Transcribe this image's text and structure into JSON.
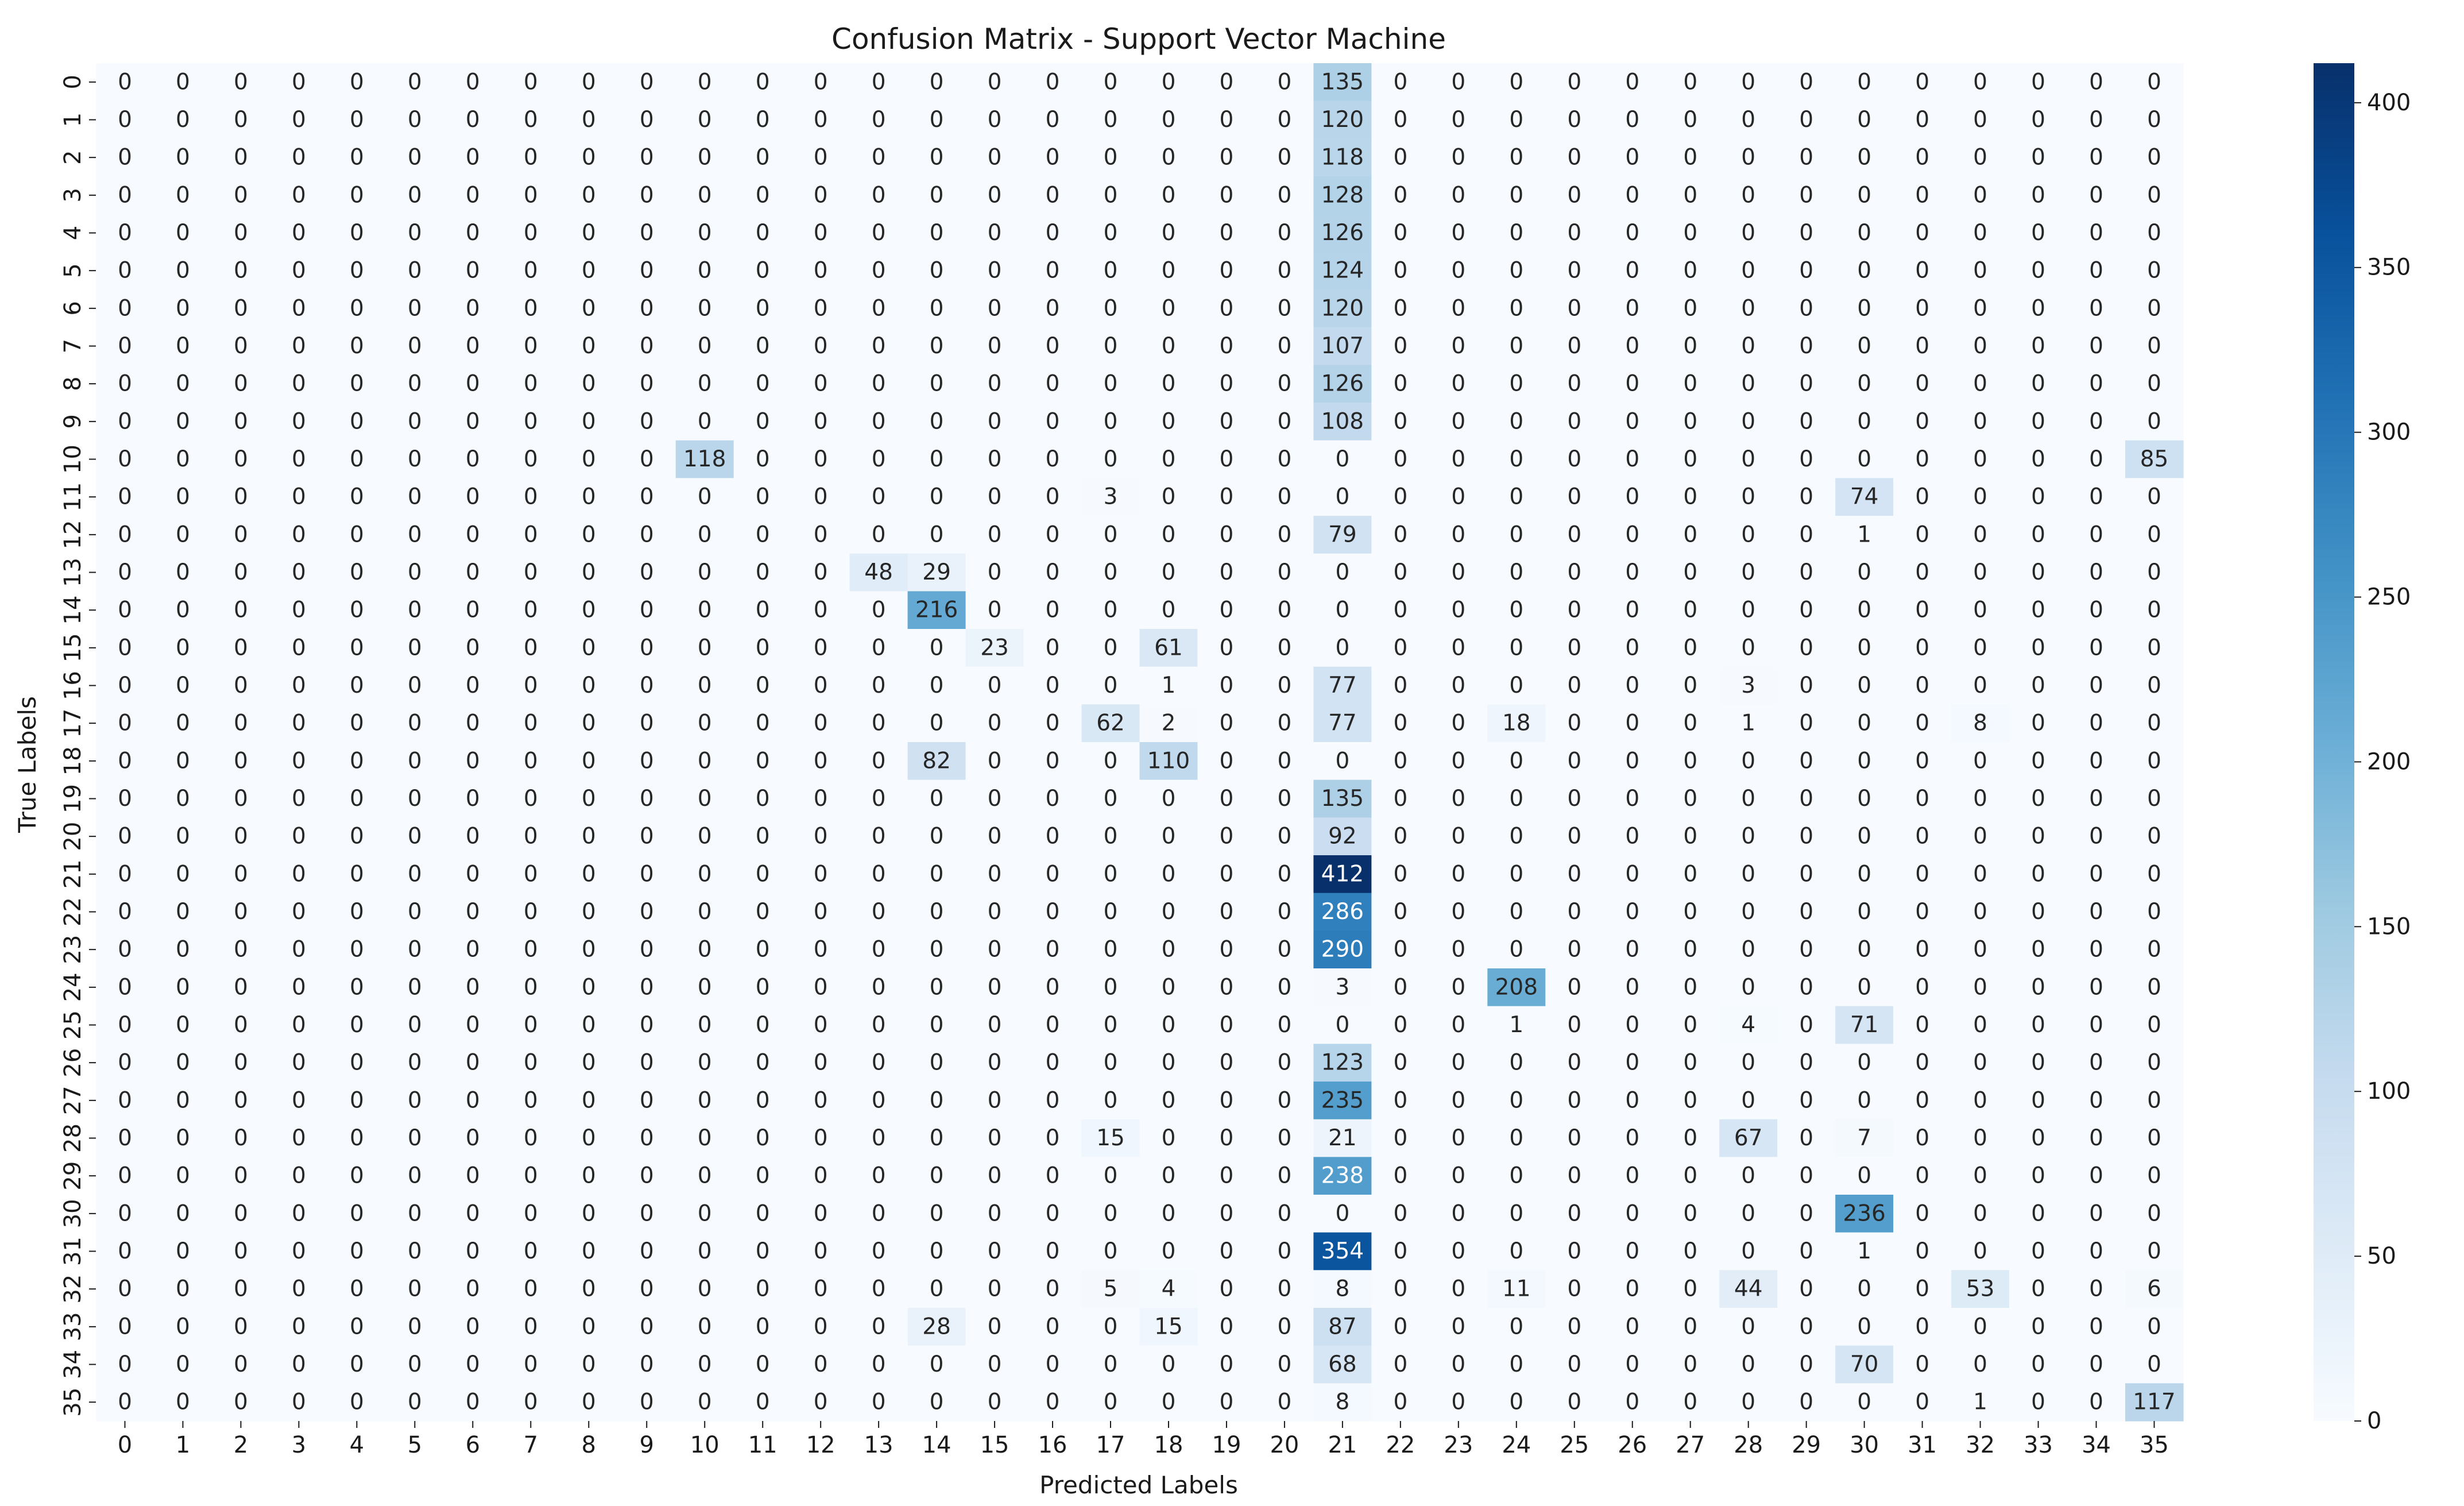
{
  "chart_data": {
    "type": "heatmap",
    "title": "Confusion Matrix - Support Vector Machine",
    "xlabel": "Predicted Labels",
    "ylabel": "True Labels",
    "x_tick_labels": [
      "0",
      "1",
      "2",
      "3",
      "4",
      "5",
      "6",
      "7",
      "8",
      "9",
      "10",
      "11",
      "12",
      "13",
      "14",
      "15",
      "16",
      "17",
      "18",
      "19",
      "20",
      "21",
      "22",
      "23",
      "24",
      "25",
      "26",
      "27",
      "28",
      "29",
      "30",
      "31",
      "32",
      "33",
      "34",
      "35"
    ],
    "y_tick_labels": [
      "0",
      "1",
      "2",
      "3",
      "4",
      "5",
      "6",
      "7",
      "8",
      "9",
      "10",
      "11",
      "12",
      "13",
      "14",
      "15",
      "16",
      "17",
      "18",
      "19",
      "20",
      "21",
      "22",
      "23",
      "24",
      "25",
      "26",
      "27",
      "28",
      "29",
      "30",
      "31",
      "32",
      "33",
      "34",
      "35"
    ],
    "colorbar": {
      "min": 0,
      "max": 412,
      "ticks": [
        0,
        50,
        100,
        150,
        200,
        250,
        300,
        350,
        400
      ],
      "colormap": "Blues"
    },
    "cells": [
      {
        "row": 0,
        "col": 21,
        "value": 135
      },
      {
        "row": 1,
        "col": 21,
        "value": 120
      },
      {
        "row": 2,
        "col": 21,
        "value": 118
      },
      {
        "row": 3,
        "col": 21,
        "value": 128
      },
      {
        "row": 4,
        "col": 21,
        "value": 126
      },
      {
        "row": 5,
        "col": 21,
        "value": 124
      },
      {
        "row": 6,
        "col": 21,
        "value": 120
      },
      {
        "row": 7,
        "col": 21,
        "value": 107
      },
      {
        "row": 8,
        "col": 21,
        "value": 126
      },
      {
        "row": 9,
        "col": 21,
        "value": 108
      },
      {
        "row": 10,
        "col": 10,
        "value": 118
      },
      {
        "row": 10,
        "col": 35,
        "value": 85
      },
      {
        "row": 11,
        "col": 17,
        "value": 3
      },
      {
        "row": 11,
        "col": 30,
        "value": 74
      },
      {
        "row": 12,
        "col": 21,
        "value": 79
      },
      {
        "row": 12,
        "col": 30,
        "value": 1
      },
      {
        "row": 13,
        "col": 13,
        "value": 48
      },
      {
        "row": 13,
        "col": 14,
        "value": 29
      },
      {
        "row": 14,
        "col": 14,
        "value": 216
      },
      {
        "row": 15,
        "col": 15,
        "value": 23
      },
      {
        "row": 15,
        "col": 18,
        "value": 61
      },
      {
        "row": 16,
        "col": 18,
        "value": 1
      },
      {
        "row": 16,
        "col": 21,
        "value": 77
      },
      {
        "row": 16,
        "col": 28,
        "value": 3
      },
      {
        "row": 17,
        "col": 17,
        "value": 62
      },
      {
        "row": 17,
        "col": 18,
        "value": 2
      },
      {
        "row": 17,
        "col": 21,
        "value": 77
      },
      {
        "row": 17,
        "col": 24,
        "value": 18
      },
      {
        "row": 17,
        "col": 28,
        "value": 1
      },
      {
        "row": 17,
        "col": 32,
        "value": 8
      },
      {
        "row": 18,
        "col": 14,
        "value": 82
      },
      {
        "row": 18,
        "col": 18,
        "value": 110
      },
      {
        "row": 19,
        "col": 21,
        "value": 135
      },
      {
        "row": 20,
        "col": 21,
        "value": 92
      },
      {
        "row": 21,
        "col": 21,
        "value": 412
      },
      {
        "row": 22,
        "col": 21,
        "value": 286
      },
      {
        "row": 23,
        "col": 21,
        "value": 290
      },
      {
        "row": 24,
        "col": 21,
        "value": 3
      },
      {
        "row": 24,
        "col": 24,
        "value": 208
      },
      {
        "row": 25,
        "col": 24,
        "value": 1
      },
      {
        "row": 25,
        "col": 28,
        "value": 4
      },
      {
        "row": 25,
        "col": 30,
        "value": 71
      },
      {
        "row": 26,
        "col": 21,
        "value": 123
      },
      {
        "row": 27,
        "col": 21,
        "value": 235
      },
      {
        "row": 28,
        "col": 17,
        "value": 15
      },
      {
        "row": 28,
        "col": 21,
        "value": 21
      },
      {
        "row": 28,
        "col": 28,
        "value": 67
      },
      {
        "row": 28,
        "col": 30,
        "value": 7
      },
      {
        "row": 29,
        "col": 21,
        "value": 238
      },
      {
        "row": 30,
        "col": 30,
        "value": 236
      },
      {
        "row": 31,
        "col": 21,
        "value": 354
      },
      {
        "row": 31,
        "col": 30,
        "value": 1
      },
      {
        "row": 32,
        "col": 17,
        "value": 5
      },
      {
        "row": 32,
        "col": 18,
        "value": 4
      },
      {
        "row": 32,
        "col": 21,
        "value": 8
      },
      {
        "row": 32,
        "col": 24,
        "value": 11
      },
      {
        "row": 32,
        "col": 28,
        "value": 44
      },
      {
        "row": 32,
        "col": 32,
        "value": 53
      },
      {
        "row": 32,
        "col": 35,
        "value": 6
      },
      {
        "row": 33,
        "col": 14,
        "value": 28
      },
      {
        "row": 33,
        "col": 18,
        "value": 15
      },
      {
        "row": 33,
        "col": 21,
        "value": 87
      },
      {
        "row": 34,
        "col": 21,
        "value": 68
      },
      {
        "row": 34,
        "col": 30,
        "value": 70
      },
      {
        "row": 35,
        "col": 21,
        "value": 8
      },
      {
        "row": 35,
        "col": 32,
        "value": 1
      },
      {
        "row": 35,
        "col": 35,
        "value": 117
      }
    ]
  }
}
